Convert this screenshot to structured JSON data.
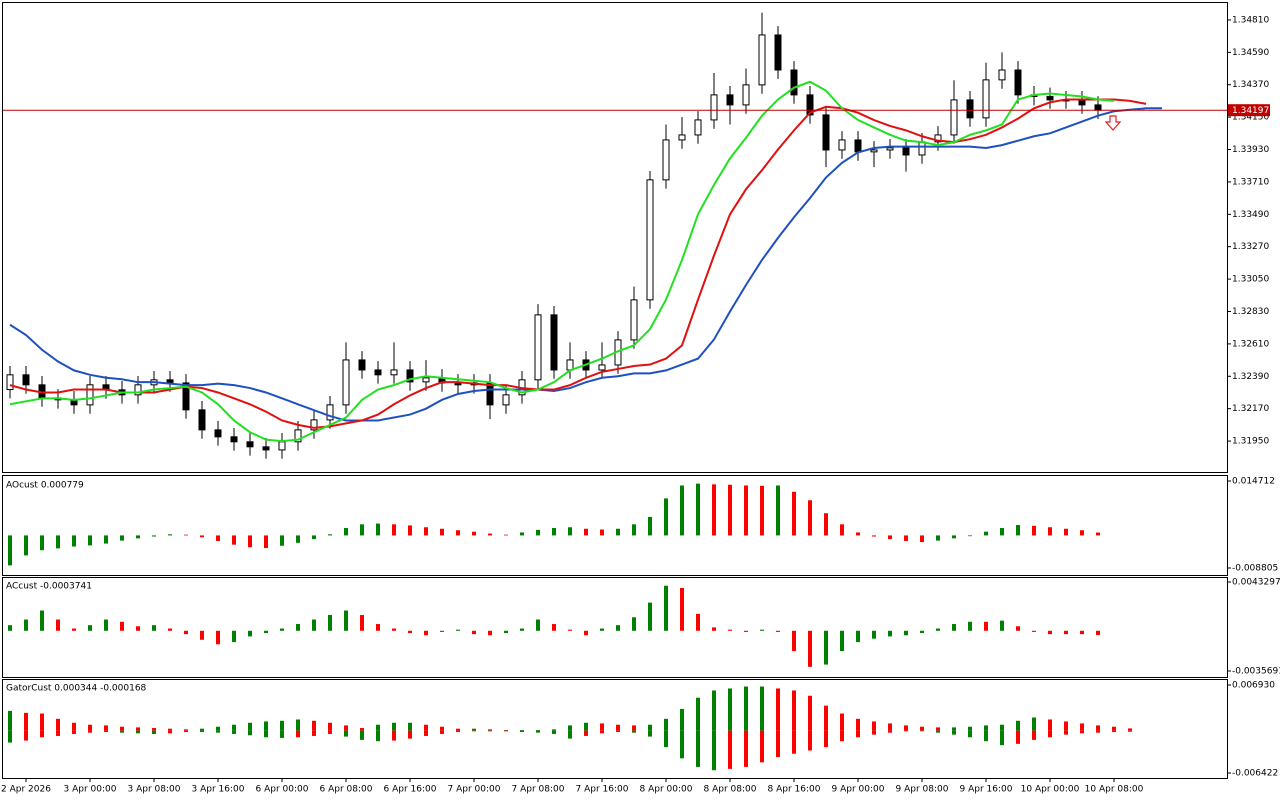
{
  "chart_data": [
    {
      "type": "candlestick",
      "categories": [
        null,
        "2 Apr 2026",
        null,
        null,
        null,
        "3 Apr 00:00",
        null,
        null,
        null,
        "3 Apr 08:00",
        null,
        null,
        null,
        "3 Apr 16:00",
        null,
        null,
        null,
        "6 Apr 00:00",
        null,
        null,
        null,
        "6 Apr 08:00",
        null,
        null,
        null,
        "6 Apr 16:00",
        null,
        null,
        null,
        "7 Apr 00:00",
        null,
        null,
        null,
        "7 Apr 08:00",
        null,
        null,
        null,
        "7 Apr 16:00",
        null,
        null,
        null,
        "8 Apr 00:00",
        null,
        null,
        null,
        "8 Apr 08:00",
        null,
        null,
        null,
        "8 Apr 16:00",
        null,
        null,
        null,
        "9 Apr 00:00",
        null,
        null,
        null,
        "9 Apr 08:00",
        null,
        null,
        null,
        "9 Apr 16:00",
        null,
        null,
        null,
        "10 Apr 00:00",
        null,
        null,
        null,
        "10 Apr 08:00",
        null,
        null,
        null
      ],
      "open": [
        1.323,
        1.324,
        1.32332,
        1.32243,
        1.3223,
        1.32196,
        1.32332,
        1.32298,
        1.32264,
        1.32332,
        1.32366,
        1.32345,
        1.32162,
        1.32026,
        1.31979,
        1.31945,
        1.31911,
        1.3189,
        1.31945,
        1.32026,
        1.32094,
        1.32196,
        1.32501,
        1.32433,
        1.324,
        1.32433,
        1.32352,
        1.32379,
        1.32345,
        1.32332,
        1.32345,
        1.32196,
        1.32264,
        1.32366,
        1.32807,
        1.32433,
        1.32501,
        1.32433,
        1.32467,
        1.32637,
        1.32909,
        1.33724,
        1.33995,
        1.34029,
        1.34131,
        1.34301,
        1.34233,
        1.34369,
        1.34708,
        1.3447,
        1.34301,
        1.34165,
        1.33927,
        1.33995,
        1.33914,
        1.33927,
        1.33941,
        1.33893,
        1.33982,
        1.34029,
        1.34267,
        1.34145,
        1.34403,
        1.3447,
        1.34301,
        1.3429,
        1.34267,
        1.34267,
        1.34233,
        null,
        null,
        null,
        null
      ],
      "high": [
        1.3246,
        1.3246,
        1.32392,
        1.32303,
        1.3229,
        1.32392,
        1.32392,
        1.32358,
        1.32392,
        1.32426,
        1.32426,
        1.32405,
        1.32222,
        1.32086,
        1.32039,
        1.32005,
        1.31971,
        1.32005,
        1.32086,
        1.32154,
        1.32256,
        1.3262,
        1.32561,
        1.32493,
        1.3262,
        1.32493,
        1.325,
        1.32439,
        1.32405,
        1.32405,
        1.32405,
        1.32324,
        1.32426,
        1.3288,
        1.32867,
        1.3262,
        1.32561,
        1.3262,
        1.32697,
        1.33,
        1.33784,
        1.341,
        1.3415,
        1.34191,
        1.3445,
        1.34361,
        1.3448,
        1.3486,
        1.34768,
        1.3453,
        1.34361,
        1.34225,
        1.34055,
        1.34055,
        1.33987,
        1.34001,
        1.34001,
        1.34042,
        1.34089,
        1.344,
        1.34327,
        1.3452,
        1.3459,
        1.3453,
        1.34361,
        1.3435,
        1.34327,
        1.34327,
        1.34293,
        null,
        null,
        null,
        null
      ],
      "low": [
        1.3224,
        1.32272,
        1.32183,
        1.3217,
        1.32136,
        1.32136,
        1.32238,
        1.32204,
        1.32204,
        1.32272,
        1.32285,
        1.32102,
        1.31966,
        1.31919,
        1.31885,
        1.31851,
        1.3183,
        1.3183,
        1.31885,
        1.31966,
        1.32034,
        1.32136,
        1.32373,
        1.3234,
        1.3234,
        1.32292,
        1.32292,
        1.32285,
        1.32272,
        1.32272,
        1.321,
        1.32136,
        1.32204,
        1.32306,
        1.32373,
        1.32373,
        1.32373,
        1.32373,
        1.32407,
        1.32577,
        1.32849,
        1.33664,
        1.33935,
        1.33969,
        1.34071,
        1.341,
        1.34173,
        1.34309,
        1.3441,
        1.34241,
        1.34105,
        1.3381,
        1.33867,
        1.33854,
        1.3381,
        1.33867,
        1.3378,
        1.33833,
        1.33922,
        1.33969,
        1.34085,
        1.34085,
        1.34343,
        1.34241,
        1.3423,
        1.34207,
        1.34207,
        1.34173,
        1.34137,
        null,
        null,
        null,
        null
      ],
      "close": [
        1.324,
        1.32332,
        1.32243,
        1.3223,
        1.32196,
        1.32332,
        1.32298,
        1.32264,
        1.32332,
        1.32366,
        1.32345,
        1.32162,
        1.32026,
        1.31979,
        1.31945,
        1.31911,
        1.3189,
        1.31945,
        1.32026,
        1.32094,
        1.32196,
        1.32501,
        1.32433,
        1.324,
        1.32433,
        1.32352,
        1.32379,
        1.32345,
        1.32332,
        1.32345,
        1.32196,
        1.32264,
        1.32366,
        1.32807,
        1.32433,
        1.32501,
        1.32433,
        1.32467,
        1.32637,
        1.32909,
        1.33724,
        1.33995,
        1.34029,
        1.34131,
        1.34301,
        1.34233,
        1.34369,
        1.34708,
        1.3447,
        1.34301,
        1.34165,
        1.33927,
        1.33995,
        1.33914,
        1.33927,
        1.33941,
        1.33893,
        1.33982,
        1.34029,
        1.34267,
        1.34145,
        1.34403,
        1.3447,
        1.34301,
        1.3429,
        1.34267,
        1.34267,
        1.34233,
        1.34197,
        null,
        null,
        null,
        null
      ],
      "up_color": "#ffffff",
      "down_color": "#000000",
      "wick_color": "#000000",
      "series": [
        {
          "color": "#1e50c0",
          "values": [
            1.3274,
            1.3267,
            1.3257,
            1.3249,
            1.3243,
            1.324,
            1.3238,
            1.3237,
            1.3235,
            1.3235,
            1.3234,
            1.3233,
            1.3233,
            1.3234,
            1.3233,
            1.3231,
            1.3228,
            1.3224,
            1.322,
            1.3216,
            1.3212,
            1.3209,
            1.3209,
            1.3209,
            1.3211,
            1.3213,
            1.3217,
            1.3223,
            1.3227,
            1.3229,
            1.323,
            1.323,
            1.323,
            1.323,
            1.3229,
            1.3231,
            1.3235,
            1.3238,
            1.3239,
            1.3241,
            1.3241,
            1.3243,
            1.3247,
            1.3251,
            1.3264,
            1.3283,
            1.3301,
            1.3318,
            1.3333,
            1.3347,
            1.336,
            1.3374,
            1.3384,
            1.3391,
            1.3394,
            1.3395,
            1.3395,
            1.3395,
            1.3395,
            1.3395,
            1.3395,
            1.3394,
            1.3396,
            1.3399,
            1.3402,
            1.3404,
            1.3408,
            1.3412,
            1.3416,
            1.3419,
            1.342,
            1.3421,
            1.3421
          ]
        },
        {
          "color": "#e01010",
          "values": [
            1.3233,
            1.323,
            1.3228,
            1.3228,
            1.323,
            1.323,
            1.323,
            1.3228,
            1.3228,
            1.3228,
            1.323,
            1.3232,
            1.3231,
            1.3228,
            1.3224,
            1.322,
            1.3215,
            1.3209,
            1.3206,
            1.3204,
            1.3205,
            1.3207,
            1.3209,
            1.3213,
            1.322,
            1.3226,
            1.3231,
            1.3235,
            1.3235,
            1.3234,
            1.3233,
            1.3233,
            1.3231,
            1.323,
            1.323,
            1.3233,
            1.3238,
            1.3242,
            1.3244,
            1.3246,
            1.3247,
            1.3251,
            1.326,
            1.3291,
            1.3321,
            1.3349,
            1.3366,
            1.3379,
            1.3393,
            1.3406,
            1.3418,
            1.3422,
            1.3421,
            1.3418,
            1.3413,
            1.3409,
            1.3406,
            1.3402,
            1.3399,
            1.3398,
            1.34,
            1.3403,
            1.3408,
            1.3414,
            1.3421,
            1.3425,
            1.3427,
            1.3427,
            1.3427,
            1.3427,
            1.3426,
            1.3424,
            null
          ]
        },
        {
          "color": "#20e020",
          "values": [
            1.322,
            1.3222,
            1.3224,
            1.3224,
            1.3223,
            1.3224,
            1.3226,
            1.3228,
            1.3228,
            1.323,
            1.3231,
            1.3232,
            1.3228,
            1.322,
            1.3209,
            1.3201,
            1.3196,
            1.3195,
            1.3196,
            1.3201,
            1.3206,
            1.3211,
            1.3223,
            1.323,
            1.3233,
            1.3237,
            1.3239,
            1.3238,
            1.3237,
            1.3236,
            1.3235,
            1.3231,
            1.3228,
            1.323,
            1.3235,
            1.3243,
            1.3247,
            1.3251,
            1.3256,
            1.326,
            1.3271,
            1.3291,
            1.3318,
            1.3349,
            1.3369,
            1.3387,
            1.3401,
            1.3416,
            1.3427,
            1.3435,
            1.3439,
            1.3433,
            1.3421,
            1.3413,
            1.3408,
            1.3403,
            1.3399,
            1.3398,
            1.3396,
            1.3398,
            1.3403,
            1.3406,
            1.341,
            1.3427,
            1.343,
            1.3431,
            1.343,
            1.3429,
            1.3427,
            1.3426,
            null,
            null,
            null
          ]
        }
      ],
      "current_price": 1.34197,
      "current_price_color": "#c00000",
      "ylim": [
        1.3174,
        1.34925
      ],
      "yticks": [
        {
          "value": 1.3195,
          "label": "1.31950"
        },
        {
          "value": 1.3217,
          "label": "1.32170"
        },
        {
          "value": 1.3239,
          "label": "1.32390"
        },
        {
          "value": 1.3261,
          "label": "1.32610"
        },
        {
          "value": 1.3283,
          "label": "1.32830"
        },
        {
          "value": 1.3305,
          "label": "1.33050"
        },
        {
          "value": 1.3327,
          "label": "1.33270"
        },
        {
          "value": 1.3349,
          "label": "1.33490"
        },
        {
          "value": 1.3371,
          "label": "1.33710"
        },
        {
          "value": 1.3393,
          "label": "1.33930"
        },
        {
          "value": 1.3415,
          "label": "1.34150"
        },
        {
          "value": 1.3437,
          "label": "1.34370"
        },
        {
          "value": 1.3459,
          "label": "1.34590"
        },
        {
          "value": 1.3481,
          "label": "1.34810"
        }
      ]
    },
    {
      "type": "oscillator",
      "title": "AOcust 0.000779",
      "rise_color": "#008000",
      "fall_color": "#ff0000",
      "values": [
        -0.0081,
        -0.0054,
        -0.004,
        -0.0035,
        -0.003,
        -0.0027,
        -0.0022,
        -0.0014,
        -0.0008,
        -0.0003,
        0.0003,
        0.0002,
        -0.0005,
        -0.0015,
        -0.0025,
        -0.0032,
        -0.0034,
        -0.0028,
        -0.002,
        -0.001,
        0.0003,
        0.002,
        0.003,
        0.0032,
        0.003,
        0.0027,
        0.0022,
        0.0018,
        0.0014,
        0.001,
        0.0005,
        0.0002,
        0.0008,
        0.0015,
        0.002,
        0.0022,
        0.0018,
        0.0016,
        0.0018,
        0.003,
        0.005,
        0.01,
        0.0135,
        0.014,
        0.0138,
        0.0137,
        0.0135,
        0.0134,
        0.0135,
        0.0118,
        0.0095,
        0.006,
        0.003,
        0.0008,
        -0.0003,
        -0.001,
        -0.0015,
        -0.0018,
        -0.0014,
        -0.0008,
        -0.0002,
        0.001,
        0.002,
        0.0028,
        0.0026,
        0.0022,
        0.0018,
        0.0014,
        0.000779,
        null,
        null,
        null,
        null
      ],
      "ylim": [
        -0.0107,
        0.01606
      ],
      "yticks": [
        0.014712,
        -0.008805
      ]
    },
    {
      "type": "oscillator",
      "title": "ACcust -0.0003741",
      "rise_color": "#008000",
      "fall_color": "#ff0000",
      "values": [
        0.0005,
        0.001,
        0.0018,
        0.001,
        0.0002,
        0.0005,
        0.001,
        0.0008,
        0.0004,
        0.0005,
        0.0002,
        -0.0003,
        -0.0008,
        -0.0012,
        -0.001,
        -0.0005,
        -0.0002,
        0.0002,
        0.0006,
        0.001,
        0.0014,
        0.0018,
        0.0014,
        0.0006,
        0.0002,
        -0.0002,
        -0.0004,
        -0.0001,
        0.0001,
        -0.0003,
        -0.0004,
        -0.0002,
        0.0002,
        0.001,
        0.0006,
        0.0001,
        -0.0004,
        0.0002,
        0.0005,
        0.0012,
        0.0025,
        0.004,
        0.0038,
        0.0015,
        0.0003,
        0.0001,
        -0.0001,
        0.0001,
        -0.0001,
        -0.0018,
        -0.0032,
        -0.003,
        -0.0018,
        -0.001,
        -0.0007,
        -0.0005,
        -0.0004,
        -0.0002,
        0.0002,
        0.0006,
        0.0008,
        0.0008,
        0.0009,
        0.0004,
        -0.0001,
        -0.0003,
        -0.0003,
        -0.0003,
        -0.0003741,
        null,
        null,
        null,
        null
      ],
      "ylim": [
        -0.004102,
        0.004774
      ],
      "yticks": [
        0.0043297,
        -0.0035691
      ]
    },
    {
      "type": "gator",
      "title": "GatorCust 0.000344 -0.000168",
      "rise_color": "#008000",
      "fall_color": "#ff0000",
      "series": [
        {
          "values": [
            0.003,
            0.0027,
            0.0026,
            0.0018,
            0.0012,
            0.0009,
            0.0008,
            0.0006,
            0.0005,
            0.0004,
            0.0003,
            0.0002,
            0.0003,
            0.0006,
            0.0009,
            0.0012,
            0.0014,
            0.0015,
            0.0017,
            0.0015,
            0.0012,
            0.0008,
            0.0004,
            0.0009,
            0.0012,
            0.0012,
            0.0009,
            0.0006,
            0.0003,
            0.0003,
            0.0002,
            0.0001,
            0.0001,
            0.0001,
            0.0002,
            0.0008,
            0.0012,
            0.0011,
            0.0009,
            0.0008,
            0.0009,
            0.0018,
            0.0033,
            0.005,
            0.0061,
            0.0064,
            0.0067,
            0.0067,
            0.0064,
            0.0061,
            0.0053,
            0.0038,
            0.0026,
            0.0018,
            0.0014,
            0.0011,
            0.0008,
            0.0006,
            0.0005,
            0.0005,
            0.0006,
            0.0008,
            0.0009,
            0.0015,
            0.002,
            0.0017,
            0.0014,
            0.0011,
            0.0008,
            0.0006,
            0.000344,
            null,
            null
          ]
        },
        {
          "values": [
            -0.0018,
            -0.0015,
            -0.001,
            -0.0008,
            -0.0005,
            -0.0003,
            -0.0002,
            -0.0003,
            -0.0004,
            -0.0005,
            -0.0004,
            -0.0002,
            -0.0002,
            -0.0003,
            -0.0005,
            -0.0007,
            -0.001,
            -0.0011,
            -0.001,
            -0.0008,
            -0.0005,
            -0.0009,
            -0.0014,
            -0.0016,
            -0.0015,
            -0.0012,
            -0.0008,
            -0.0005,
            -0.0002,
            -0.0001,
            -0.0001,
            -0.0001,
            -0.0002,
            -0.0003,
            -0.0005,
            -0.0012,
            -0.0008,
            -0.0004,
            -0.0002,
            -0.0003,
            -0.0009,
            -0.0025,
            -0.0042,
            -0.0055,
            -0.006,
            -0.0058,
            -0.0055,
            -0.0048,
            -0.004,
            -0.0035,
            -0.003,
            -0.0025,
            -0.0016,
            -0.001,
            -0.0006,
            -0.0003,
            -0.0001,
            -0.0001,
            -0.0003,
            -0.0006,
            -0.001,
            -0.0016,
            -0.0022,
            -0.002,
            -0.0014,
            -0.001,
            -0.0006,
            -0.0004,
            -0.0003,
            -0.0002,
            -0.000168,
            null,
            null
          ]
        }
      ],
      "ylim": [
        -0.00718,
        0.00784
      ],
      "yticks": [
        {
          "value": 0.00693,
          "label": "0.006930"
        },
        {
          "value": -0.006422,
          "label": "-0.006422"
        }
      ]
    }
  ]
}
